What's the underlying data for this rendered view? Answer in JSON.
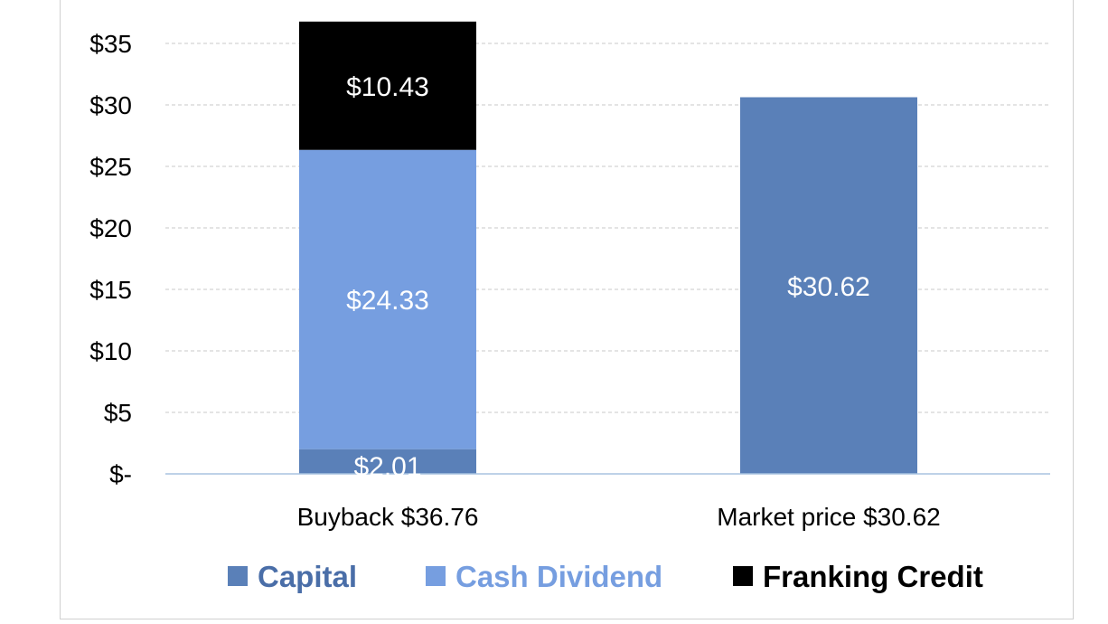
{
  "chart_data": {
    "type": "bar",
    "stacked": true,
    "categories": [
      "Buyback $36.76",
      "Market price $30.62"
    ],
    "series": [
      {
        "name": "Capital",
        "values": [
          2.01,
          30.62
        ],
        "labels": [
          "$2.01",
          "$30.62"
        ],
        "color": "#5a80b8"
      },
      {
        "name": "Cash Dividend",
        "values": [
          24.33,
          0
        ],
        "labels": [
          "$24.33",
          ""
        ],
        "color": "#769ee0"
      },
      {
        "name": "Franking Credit",
        "values": [
          10.43,
          0
        ],
        "labels": [
          "$10.43",
          ""
        ],
        "color": "#000000"
      }
    ],
    "y_ticks": [
      {
        "value": 0,
        "label": "$-"
      },
      {
        "value": 5,
        "label": "$5"
      },
      {
        "value": 10,
        "label": "$10"
      },
      {
        "value": 15,
        "label": "$15"
      },
      {
        "value": 20,
        "label": "$20"
      },
      {
        "value": 25,
        "label": "$25"
      },
      {
        "value": 30,
        "label": "$30"
      },
      {
        "value": 35,
        "label": "$35"
      }
    ],
    "ylim": [
      0,
      36.76
    ],
    "grid": true,
    "legend_position": "bottom",
    "title": "",
    "xlabel": "",
    "ylabel": ""
  },
  "colors": {
    "grid": "#c8c8c8",
    "axis": "#a8c4e0",
    "capital_legend_text": "#4a6ea8",
    "cash_dividend_legend_text": "#769ee0",
    "franking_legend_text": "#000000"
  }
}
